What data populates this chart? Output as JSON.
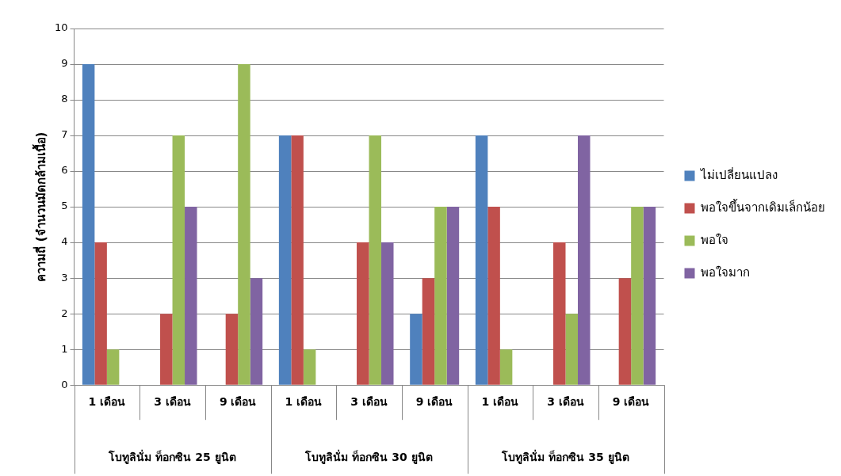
{
  "chart_data": {
    "type": "bar",
    "ylabel": "ความถี่ (จำนวนมัดกล้ามเนื้อ)",
    "categories": [
      "1 เดือน",
      "3 เดือน",
      "9 เดือน",
      "1 เดือน",
      "3 เดือน",
      "9 เดือน",
      "1 เดือน",
      "3 เดือน",
      "9 เดือน"
    ],
    "annotations": [
      "โบทูลินั่ม ท็อกซิน 25 ยูนิต",
      "โบทูลินั่ม ท็อกซิน 30 ยูนิต",
      "โบทูลินั่ม ท็อกซิน 35 ยูนิต"
    ],
    "series": [
      {
        "name": "ไม่เปลี่ยนแปลง",
        "color": "#4f81bd",
        "values": [
          9,
          0,
          0,
          7,
          0,
          2,
          7,
          0,
          0
        ]
      },
      {
        "name": "พอใจขึ้นจากเดิมเล็กน้อย",
        "color": "#c0504d",
        "values": [
          4,
          2,
          2,
          7,
          4,
          3,
          5,
          4,
          3
        ]
      },
      {
        "name": "พอใจ",
        "color": "#9bbb59",
        "values": [
          1,
          7,
          9,
          1,
          7,
          5,
          1,
          2,
          5
        ]
      },
      {
        "name": "พอใจมาก",
        "color": "#8064a2",
        "values": [
          0,
          5,
          3,
          0,
          4,
          5,
          0,
          7,
          5
        ]
      }
    ],
    "ylim": [
      0,
      10
    ],
    "yticks": [
      0,
      1,
      2,
      3,
      4,
      5,
      6,
      7,
      8,
      9,
      10
    ],
    "grid": "y",
    "legend": "right"
  }
}
